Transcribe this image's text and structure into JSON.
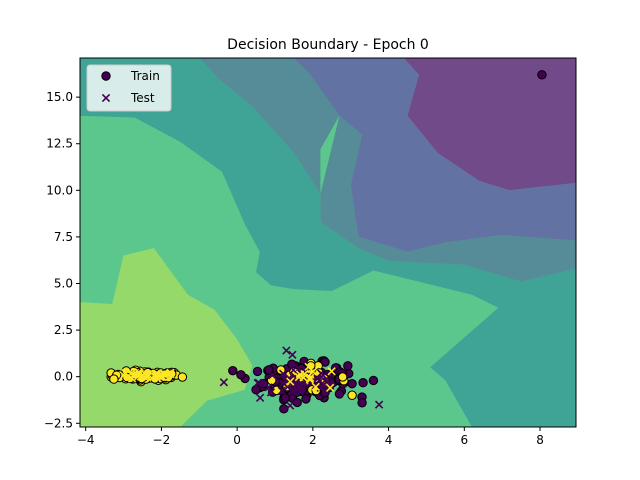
{
  "chart_data": {
    "type": "scatter",
    "title": "Decision Boundary - Epoch 0",
    "xlabel": "",
    "ylabel": "",
    "xlim": [
      -4.15,
      8.95
    ],
    "ylim": [
      -2.7,
      17.1
    ],
    "xticks": [
      -4,
      -2,
      0,
      2,
      4,
      6,
      8
    ],
    "yticks": [
      -2.5,
      0.0,
      2.5,
      5.0,
      7.5,
      10.0,
      12.5,
      15.0
    ],
    "xtick_labels": [
      "−4",
      "−2",
      "0",
      "2",
      "4",
      "6",
      "8"
    ],
    "ytick_labels": [
      "−2.5",
      "0.0",
      "2.5",
      "5.0",
      "7.5",
      "10.0",
      "12.5",
      "15.0"
    ],
    "legend": {
      "position": "top-left",
      "entries": [
        "Train",
        "Test"
      ]
    },
    "class_colors": {
      "class0": "#440154",
      "class1": "#fde725"
    },
    "region_colors": [
      "#dde63a",
      "#94d96a",
      "#5cc78c",
      "#3fa396",
      "#558c98",
      "#6273a3",
      "#714a8a"
    ],
    "decision_regions": [
      {
        "level": 0,
        "color": "#dde63a",
        "polygon": [
          [
            -4.15,
            1.9
          ],
          [
            -3.0,
            1.4
          ],
          [
            -1.5,
            0.9
          ],
          [
            -0.9,
            0.1
          ],
          [
            -1.4,
            -0.6
          ],
          [
            -2.5,
            -1.3
          ],
          [
            -4.15,
            -2.0
          ]
        ]
      },
      {
        "level": 1,
        "color": "#94d96a",
        "polygon": [
          [
            -4.15,
            4.0
          ],
          [
            -3.3,
            3.9
          ],
          [
            -3.0,
            6.5
          ],
          [
            -2.2,
            6.9
          ],
          [
            -1.3,
            4.4
          ],
          [
            -0.6,
            3.6
          ],
          [
            0.0,
            2.0
          ],
          [
            0.4,
            0.6
          ],
          [
            0.2,
            -0.7
          ],
          [
            -0.8,
            -1.3
          ],
          [
            -1.5,
            -2.7
          ],
          [
            -4.15,
            -2.7
          ]
        ]
      },
      {
        "level": 3,
        "color": "#3fa396",
        "polygon": [
          [
            -4.15,
            17.1
          ],
          [
            -1.0,
            17.1
          ],
          [
            -0.5,
            16.0
          ],
          [
            0.4,
            14.5
          ],
          [
            1.5,
            12.0
          ],
          [
            2.2,
            9.8
          ],
          [
            2.2,
            8.3
          ],
          [
            3.2,
            6.9
          ],
          [
            4.0,
            6.2
          ],
          [
            6.0,
            6.0
          ],
          [
            7.5,
            5.1
          ],
          [
            8.95,
            5.8
          ],
          [
            8.95,
            -2.7
          ],
          [
            6.2,
            -2.7
          ],
          [
            5.5,
            -0.2
          ],
          [
            5.1,
            0.5
          ],
          [
            6.9,
            3.7
          ],
          [
            6.2,
            4.4
          ],
          [
            3.6,
            5.7
          ],
          [
            2.5,
            4.6
          ],
          [
            1.5,
            4.7
          ],
          [
            0.9,
            4.9
          ],
          [
            0.5,
            5.6
          ],
          [
            0.6,
            6.7
          ],
          [
            0.2,
            8.2
          ],
          [
            -0.4,
            11.0
          ],
          [
            -1.5,
            12.6
          ],
          [
            -2.7,
            13.9
          ],
          [
            -4.15,
            14.0
          ]
        ]
      },
      {
        "level": 4,
        "color": "#558c98",
        "polygon": [
          [
            -1.0,
            17.1
          ],
          [
            1.5,
            17.1
          ],
          [
            1.9,
            16.3
          ],
          [
            2.7,
            14.0
          ],
          [
            2.2,
            12.2
          ],
          [
            2.2,
            9.8
          ],
          [
            1.5,
            12.0
          ],
          [
            0.4,
            14.5
          ],
          [
            -0.5,
            16.0
          ]
        ]
      },
      {
        "level": 4,
        "color": "#558c98",
        "polygon": [
          [
            8.95,
            5.8
          ],
          [
            7.5,
            5.1
          ],
          [
            6.0,
            6.0
          ],
          [
            4.0,
            6.2
          ],
          [
            3.2,
            6.9
          ],
          [
            2.2,
            8.3
          ],
          [
            2.2,
            9.8
          ],
          [
            2.7,
            14.0
          ],
          [
            1.9,
            16.3
          ],
          [
            1.5,
            17.1
          ],
          [
            2.5,
            17.1
          ],
          [
            3.0,
            15.5
          ],
          [
            3.3,
            13.0
          ],
          [
            3.0,
            10.3
          ],
          [
            3.2,
            7.5
          ],
          [
            4.5,
            6.7
          ],
          [
            5.5,
            7.2
          ],
          [
            7.0,
            7.6
          ],
          [
            8.95,
            7.3
          ]
        ]
      },
      {
        "level": 5,
        "color": "#6273a3",
        "polygon": [
          [
            1.5,
            17.1
          ],
          [
            4.4,
            17.1
          ],
          [
            4.8,
            16.2
          ],
          [
            4.5,
            14.0
          ],
          [
            5.3,
            12.0
          ],
          [
            6.4,
            10.5
          ],
          [
            7.2,
            10.0
          ],
          [
            8.95,
            10.4
          ],
          [
            8.95,
            7.3
          ],
          [
            7.0,
            7.6
          ],
          [
            5.5,
            7.2
          ],
          [
            4.5,
            6.7
          ],
          [
            3.2,
            7.5
          ],
          [
            3.0,
            10.3
          ],
          [
            3.3,
            13.0
          ],
          [
            2.7,
            14.0
          ],
          [
            1.9,
            16.3
          ]
        ]
      },
      {
        "level": 6,
        "color": "#714a8a",
        "polygon": [
          [
            4.4,
            17.1
          ],
          [
            8.95,
            17.1
          ],
          [
            8.95,
            10.4
          ],
          [
            7.2,
            10.0
          ],
          [
            6.4,
            10.5
          ],
          [
            5.3,
            12.0
          ],
          [
            4.5,
            14.0
          ],
          [
            4.8,
            16.2
          ]
        ]
      }
    ],
    "series": [
      {
        "name": "Train",
        "marker": "circle",
        "clusters": [
          {
            "class": 1,
            "cx": -2.4,
            "cy": 0.05,
            "sx": 0.45,
            "sy": 0.12,
            "n": 110
          },
          {
            "class": 0,
            "cx": 1.8,
            "cy": -0.2,
            "sx": 0.55,
            "sy": 0.45,
            "n": 190
          },
          {
            "class": 1,
            "cx": 1.8,
            "cy": -0.1,
            "sx": 0.55,
            "sy": 0.35,
            "n": 25
          }
        ],
        "points": [
          {
            "class": 0,
            "x": 8.05,
            "y": 16.2
          },
          {
            "class": 0,
            "x": 3.6,
            "y": -0.2
          },
          {
            "class": 0,
            "x": 3.3,
            "y": -1.4
          },
          {
            "class": 0,
            "x": 0.5,
            "y": -0.7
          },
          {
            "class": 0,
            "x": 0.1,
            "y": 0.1
          }
        ]
      },
      {
        "name": "Test",
        "marker": "x",
        "clusters": [
          {
            "class": 0,
            "cx": 1.7,
            "cy": -0.3,
            "sx": 0.55,
            "sy": 0.45,
            "n": 45
          },
          {
            "class": 1,
            "cx": 2.0,
            "cy": -0.1,
            "sx": 0.5,
            "sy": 0.3,
            "n": 12
          },
          {
            "class": 1,
            "cx": -2.4,
            "cy": 0.05,
            "sx": 0.4,
            "sy": 0.1,
            "n": 25
          }
        ],
        "points": [
          {
            "class": 0,
            "x": -0.35,
            "y": -0.3
          },
          {
            "class": 0,
            "x": 3.75,
            "y": -1.5
          },
          {
            "class": 0,
            "x": 1.4,
            "y": -1.55
          },
          {
            "class": 0,
            "x": 1.3,
            "y": 1.4
          }
        ]
      }
    ]
  }
}
